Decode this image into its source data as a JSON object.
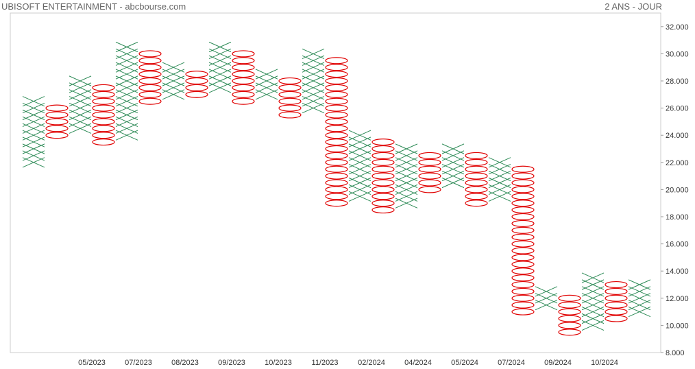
{
  "header": {
    "title": "UBISOFT ENTERTAINMENT - abcbourse.com",
    "period": "2 ANS - JOUR"
  },
  "chart_data": {
    "type": "point-and-figure",
    "box_size": 0.5,
    "ylim": [
      8.0,
      33.0
    ],
    "y_ticks": [
      "32.000",
      "30.000",
      "28.000",
      "26.000",
      "24.000",
      "22.000",
      "20.000",
      "18.000",
      "16.000",
      "14.000",
      "12.000",
      "10.000",
      "8.000"
    ],
    "x_tick_labels": [
      "05/2023",
      "07/2023",
      "08/2023",
      "09/2023",
      "10/2023",
      "11/2023",
      "02/2024",
      "04/2024",
      "05/2024",
      "07/2024",
      "09/2024",
      "10/2024"
    ],
    "colors": {
      "x": "#2e8b57",
      "o": "#e00000",
      "axis": "#cccccc"
    },
    "columns": [
      {
        "type": "X",
        "low": 22.0,
        "high": 26.5
      },
      {
        "type": "O",
        "low": 24.0,
        "high": 26.0
      },
      {
        "type": "X",
        "low": 24.5,
        "high": 28.0
      },
      {
        "type": "O",
        "low": 23.5,
        "high": 27.5
      },
      {
        "type": "X",
        "low": 24.0,
        "high": 30.5
      },
      {
        "type": "O",
        "low": 26.5,
        "high": 30.0
      },
      {
        "type": "X",
        "low": 27.0,
        "high": 29.0
      },
      {
        "type": "O",
        "low": 27.0,
        "high": 28.5
      },
      {
        "type": "X",
        "low": 27.5,
        "high": 30.5
      },
      {
        "type": "O",
        "low": 26.5,
        "high": 30.0
      },
      {
        "type": "X",
        "low": 27.0,
        "high": 28.5
      },
      {
        "type": "O",
        "low": 25.5,
        "high": 28.0
      },
      {
        "type": "X",
        "low": 26.0,
        "high": 30.0
      },
      {
        "type": "O",
        "low": 19.0,
        "high": 29.5
      },
      {
        "type": "X",
        "low": 19.5,
        "high": 24.0
      },
      {
        "type": "O",
        "low": 18.5,
        "high": 23.5
      },
      {
        "type": "X",
        "low": 19.0,
        "high": 23.0
      },
      {
        "type": "O",
        "low": 20.0,
        "high": 22.5
      },
      {
        "type": "X",
        "low": 20.5,
        "high": 23.0
      },
      {
        "type": "O",
        "low": 19.0,
        "high": 22.5
      },
      {
        "type": "X",
        "low": 19.5,
        "high": 22.0
      },
      {
        "type": "O",
        "low": 11.0,
        "high": 21.5
      },
      {
        "type": "X",
        "low": 11.5,
        "high": 12.5
      },
      {
        "type": "O",
        "low": 9.5,
        "high": 12.0
      },
      {
        "type": "X",
        "low": 10.0,
        "high": 13.5
      },
      {
        "type": "O",
        "low": 10.5,
        "high": 13.0
      },
      {
        "type": "X",
        "low": 11.0,
        "high": 13.0
      }
    ]
  }
}
